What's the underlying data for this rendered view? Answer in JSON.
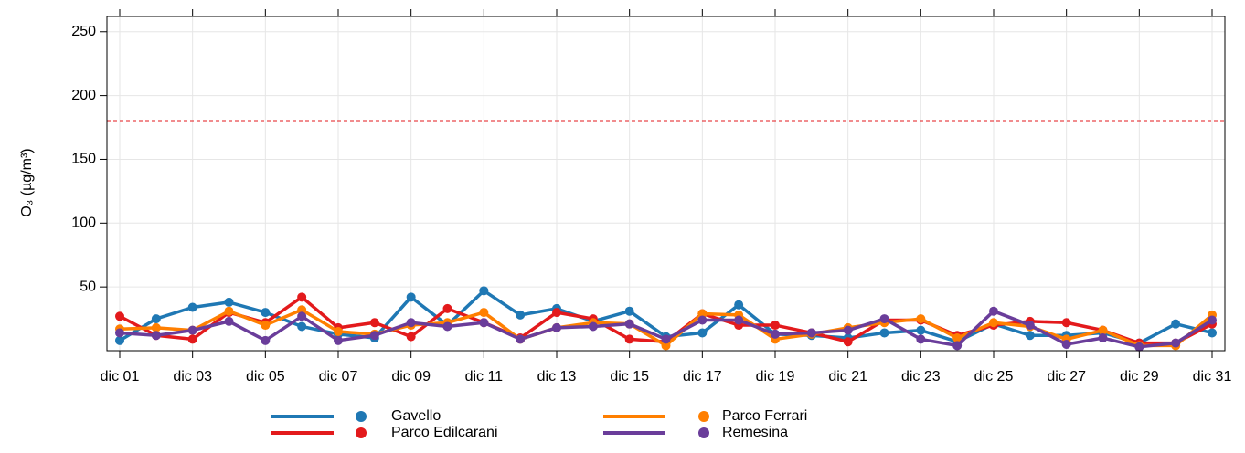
{
  "chart_data": {
    "type": "line",
    "y_label": "O₃ (µg/m³)",
    "categories": [
      "dic 01",
      null,
      "dic 03",
      null,
      "dic 05",
      null,
      "dic 07",
      null,
      "dic 09",
      null,
      "dic 11",
      null,
      "dic 13",
      null,
      "dic 15",
      null,
      "dic 17",
      null,
      "dic 19",
      null,
      "dic 21",
      null,
      "dic 23",
      null,
      "dic 25",
      null,
      "dic 27",
      null,
      "dic 29",
      null,
      "dic 31"
    ],
    "series": [
      {
        "name": "Gavello",
        "color": "#1f78b4",
        "values": [
          8,
          25,
          34,
          38,
          30,
          19,
          13,
          10,
          42,
          20,
          47,
          28,
          33,
          23,
          31,
          11,
          14,
          36,
          13,
          12,
          10,
          14,
          16,
          7,
          21,
          12,
          12,
          14,
          6,
          21,
          14
        ]
      },
      {
        "name": "Parco Edilcarani",
        "color": "#e31a1c",
        "values": [
          27,
          12,
          9,
          30,
          22,
          42,
          18,
          22,
          11,
          33,
          22,
          10,
          30,
          25,
          9,
          7,
          29,
          20,
          20,
          14,
          7,
          24,
          24,
          12,
          20,
          23,
          22,
          16,
          6,
          6,
          21
        ]
      },
      {
        "name": "Parco Ferrari",
        "color": "#ff7f00",
        "values": [
          17,
          18,
          16,
          31,
          20,
          32,
          15,
          13,
          20,
          22,
          30,
          9,
          18,
          22,
          21,
          4,
          29,
          28,
          9,
          13,
          18,
          22,
          25,
          10,
          22,
          19,
          9,
          16,
          4,
          4,
          28
        ]
      },
      {
        "name": "Remesina",
        "color": "#6a3d9a",
        "values": [
          14,
          12,
          16,
          23,
          8,
          27,
          8,
          12,
          22,
          19,
          22,
          9,
          18,
          19,
          21,
          9,
          24,
          24,
          13,
          14,
          16,
          25,
          9,
          4,
          31,
          20,
          5,
          10,
          3,
          6,
          24
        ]
      }
    ],
    "ylim": [
      0,
      262
    ],
    "yticks": [
      50,
      100,
      150,
      200,
      250
    ],
    "grid": true,
    "threshold": 180,
    "threshold_color": "#e31a1c",
    "legend": "bottom"
  }
}
